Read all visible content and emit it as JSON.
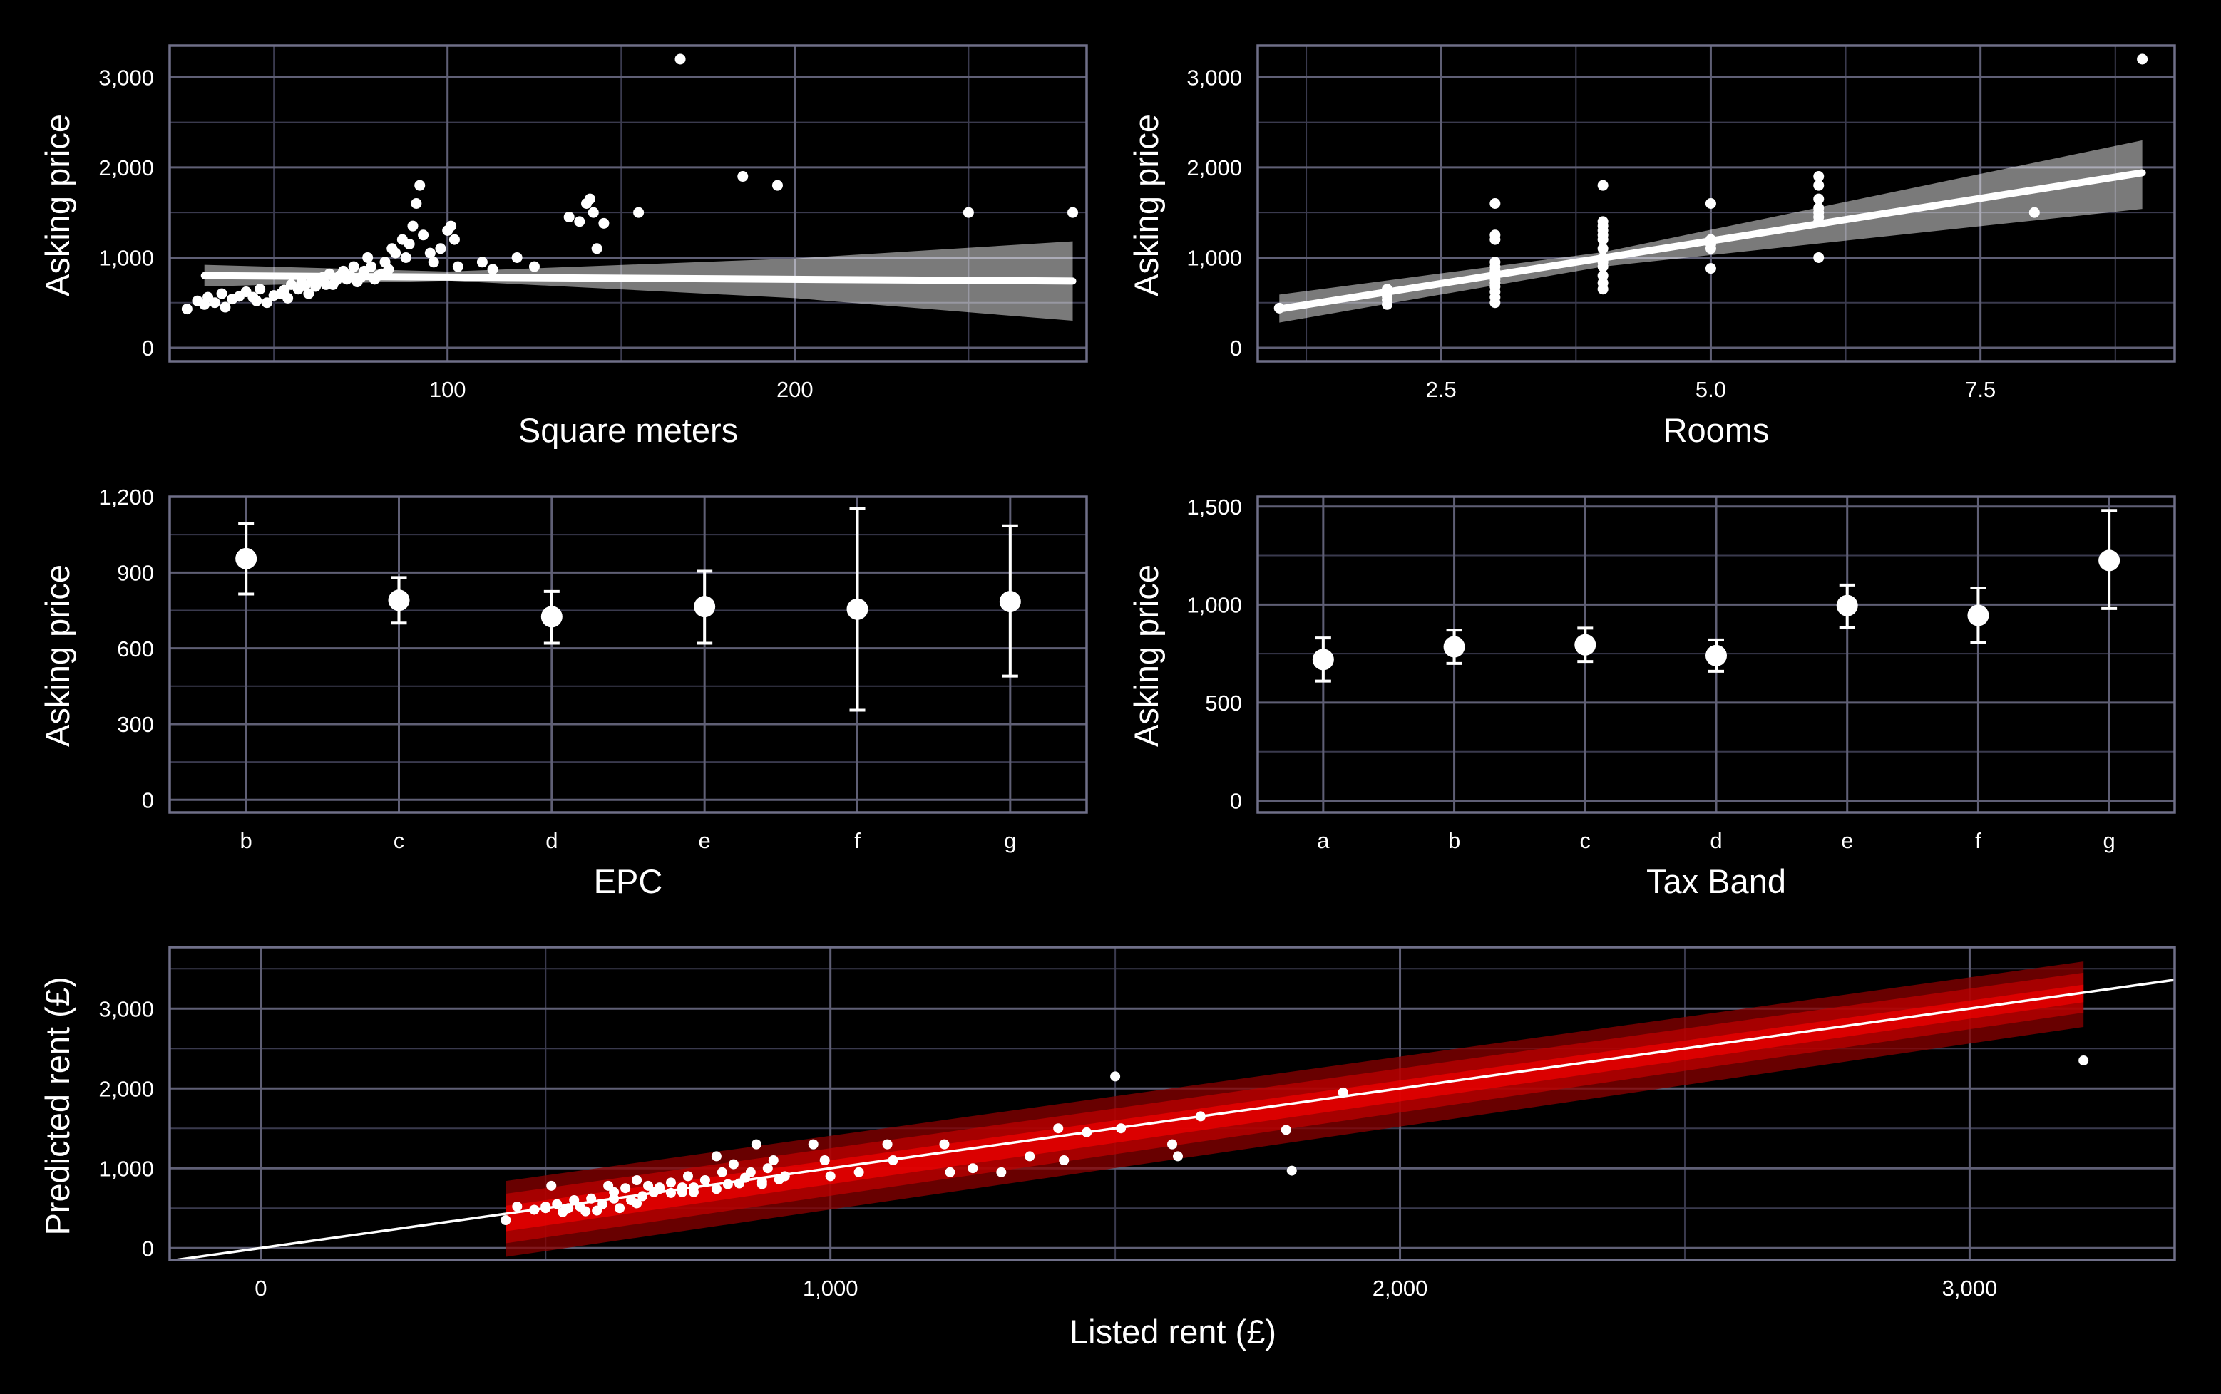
{
  "figure": {
    "background": "#000000",
    "grid_color": "#5f5f75",
    "marker_color": "#ffffff",
    "band_colors": [
      "#8b0000",
      "#c00000",
      "#ff0000"
    ]
  },
  "chart_data": [
    {
      "id": "sqm",
      "type": "scatter",
      "xlabel": "Square meters",
      "ylabel": "Asking price",
      "xlim": [
        20,
        284
      ],
      "ylim": [
        -150,
        3350
      ],
      "xticks": [
        100,
        200
      ],
      "yticks": [
        0,
        1000,
        2000,
        3000
      ],
      "xtick_labels": [
        "100",
        "200"
      ],
      "ytick_labels": [
        "0",
        "1,000",
        "2,000",
        "3,000"
      ],
      "minor_x": [
        50,
        150,
        250
      ],
      "minor_y": [
        500,
        1500,
        2500
      ],
      "points": [
        [
          25,
          430
        ],
        [
          28,
          520
        ],
        [
          30,
          480
        ],
        [
          31,
          560
        ],
        [
          33,
          500
        ],
        [
          35,
          600
        ],
        [
          38,
          540
        ],
        [
          40,
          570
        ],
        [
          42,
          620
        ],
        [
          44,
          560
        ],
        [
          46,
          650
        ],
        [
          48,
          500
        ],
        [
          50,
          580
        ],
        [
          52,
          600
        ],
        [
          54,
          550
        ],
        [
          55,
          700
        ],
        [
          57,
          650
        ],
        [
          58,
          720
        ],
        [
          60,
          600
        ],
        [
          62,
          680
        ],
        [
          63,
          750
        ],
        [
          64,
          780
        ],
        [
          65,
          700
        ],
        [
          66,
          820
        ],
        [
          68,
          750
        ],
        [
          70,
          850
        ],
        [
          71,
          760
        ],
        [
          72,
          800
        ],
        [
          73,
          900
        ],
        [
          75,
          780
        ],
        [
          76,
          850
        ],
        [
          77,
          1000
        ],
        [
          78,
          900
        ],
        [
          80,
          800
        ],
        [
          81,
          820
        ],
        [
          82,
          950
        ],
        [
          84,
          1100
        ],
        [
          85,
          1050
        ],
        [
          87,
          1200
        ],
        [
          88,
          1000
        ],
        [
          89,
          1150
        ],
        [
          90,
          1350
        ],
        [
          91,
          1600
        ],
        [
          92,
          1800
        ],
        [
          93,
          1250
        ],
        [
          95,
          1050
        ],
        [
          96,
          950
        ],
        [
          98,
          1100
        ],
        [
          100,
          1300
        ],
        [
          101,
          1350
        ],
        [
          102,
          1200
        ],
        [
          103,
          900
        ],
        [
          110,
          950
        ],
        [
          113,
          870
        ],
        [
          120,
          1000
        ],
        [
          125,
          900
        ],
        [
          135,
          1450
        ],
        [
          138,
          1400
        ],
        [
          140,
          1600
        ],
        [
          141,
          1650
        ],
        [
          142,
          1500
        ],
        [
          143,
          1100
        ],
        [
          145,
          1380
        ],
        [
          155,
          1500
        ],
        [
          167,
          3200
        ],
        [
          185,
          1900
        ],
        [
          195,
          1800
        ],
        [
          250,
          1500
        ],
        [
          280,
          1500
        ],
        [
          36,
          450
        ],
        [
          45,
          520
        ],
        [
          53,
          640
        ],
        [
          59,
          690
        ],
        [
          61,
          740
        ],
        [
          67,
          700
        ],
        [
          69,
          800
        ],
        [
          74,
          730
        ],
        [
          79,
          760
        ],
        [
          83,
          870
        ]
      ],
      "regression": {
        "x": [
          30,
          280
        ],
        "y": [
          800,
          740
        ]
      },
      "ci_band": {
        "x": [
          30,
          100,
          200,
          280
        ],
        "upper": [
          920,
          845,
          990,
          1180
        ],
        "lower": [
          680,
          745,
          550,
          300
        ]
      }
    },
    {
      "id": "rooms",
      "type": "scatter",
      "xlabel": "Rooms",
      "ylabel": "Asking price",
      "xlim": [
        0.8,
        9.3
      ],
      "ylim": [
        -150,
        3350
      ],
      "xticks": [
        2.5,
        5.0,
        7.5
      ],
      "yticks": [
        0,
        1000,
        2000,
        3000
      ],
      "xtick_labels": [
        "2.5",
        "5.0",
        "7.5"
      ],
      "ytick_labels": [
        "0",
        "1,000",
        "2,000",
        "3,000"
      ],
      "minor_x": [
        1.25,
        3.75,
        6.25,
        8.75
      ],
      "minor_y": [
        500,
        1500,
        2500
      ],
      "points": [
        [
          1,
          440
        ],
        [
          2,
          480
        ],
        [
          2,
          530
        ],
        [
          2,
          570
        ],
        [
          2,
          600
        ],
        [
          2,
          650
        ],
        [
          3,
          500
        ],
        [
          3,
          560
        ],
        [
          3,
          620
        ],
        [
          3,
          680
        ],
        [
          3,
          720
        ],
        [
          3,
          760
        ],
        [
          3,
          800
        ],
        [
          3,
          850
        ],
        [
          3,
          900
        ],
        [
          3,
          950
        ],
        [
          3,
          1200
        ],
        [
          3,
          1250
        ],
        [
          3,
          1600
        ],
        [
          4,
          650
        ],
        [
          4,
          720
        ],
        [
          4,
          800
        ],
        [
          4,
          900
        ],
        [
          4,
          950
        ],
        [
          4,
          1000
        ],
        [
          4,
          1100
        ],
        [
          4,
          1200
        ],
        [
          4,
          1250
        ],
        [
          4,
          1300
        ],
        [
          4,
          1350
        ],
        [
          4,
          1400
        ],
        [
          4,
          1800
        ],
        [
          5,
          880
        ],
        [
          5,
          1100
        ],
        [
          5,
          1150
        ],
        [
          5,
          1200
        ],
        [
          5,
          1600
        ],
        [
          6,
          1000
        ],
        [
          6,
          1400
        ],
        [
          6,
          1450
        ],
        [
          6,
          1500
        ],
        [
          6,
          1550
        ],
        [
          6,
          1650
        ],
        [
          6,
          1800
        ],
        [
          6,
          1900
        ],
        [
          8,
          1500
        ],
        [
          9,
          3200
        ]
      ],
      "regression": {
        "x": [
          1,
          9
        ],
        "y": [
          430,
          1940
        ]
      },
      "ci_band": {
        "x": [
          1,
          4,
          9
        ],
        "upper": [
          590,
          1060,
          2300
        ],
        "lower": [
          280,
          900,
          1540
        ]
      }
    },
    {
      "id": "epc",
      "type": "errorbar",
      "xlabel": "EPC",
      "ylabel": "Asking price",
      "categories": [
        "b",
        "c",
        "d",
        "e",
        "f",
        "g"
      ],
      "means": [
        955,
        790,
        725,
        765,
        755,
        785
      ],
      "lower": [
        815,
        700,
        620,
        620,
        355,
        490
      ],
      "upper": [
        1095,
        880,
        825,
        905,
        1155,
        1085
      ],
      "ylim": [
        -50,
        1200
      ],
      "yticks": [
        0,
        300,
        600,
        900,
        1200
      ],
      "ytick_labels": [
        "0",
        "300",
        "600",
        "900",
        "1,200"
      ],
      "minor_y": [
        150,
        450,
        750,
        1050
      ]
    },
    {
      "id": "tax",
      "type": "errorbar",
      "xlabel": "Tax Band",
      "ylabel": "Asking price",
      "categories": [
        "a",
        "b",
        "c",
        "d",
        "e",
        "f",
        "g"
      ],
      "means": [
        720,
        785,
        795,
        740,
        995,
        945,
        1225
      ],
      "lower": [
        610,
        700,
        710,
        660,
        885,
        805,
        980
      ],
      "upper": [
        830,
        870,
        880,
        820,
        1100,
        1085,
        1480
      ],
      "ylim": [
        -60,
        1550
      ],
      "yticks": [
        0,
        500,
        1000,
        1500
      ],
      "ytick_labels": [
        "0",
        "500",
        "1,000",
        "1,500"
      ],
      "minor_y": [
        250,
        750,
        1250
      ]
    },
    {
      "id": "pred",
      "type": "scatter",
      "xlabel": "Listed rent (£)",
      "ylabel": "Predicted rent (£)",
      "xlim": [
        -160,
        3360
      ],
      "ylim": [
        -150,
        3770
      ],
      "xticks": [
        0,
        1000,
        2000,
        3000
      ],
      "yticks": [
        0,
        1000,
        2000,
        3000
      ],
      "xtick_labels": [
        "0",
        "1,000",
        "2,000",
        "3,000"
      ],
      "ytick_labels": [
        "0",
        "1,000",
        "2,000",
        "3,000"
      ],
      "minor_x": [
        500,
        1500,
        2500
      ],
      "minor_y": [
        500,
        1500,
        2500,
        3500
      ],
      "identity_line": {
        "x": [
          -160,
          3360
        ],
        "y": [
          -160,
          3360
        ]
      },
      "bands": [
        {
          "x": [
            430,
            3200
          ],
          "lower": [
            -110,
            2770
          ],
          "upper": [
            840,
            3590
          ]
        },
        {
          "x": [
            430,
            3200
          ],
          "lower": [
            60,
            2950
          ],
          "upper": [
            680,
            3450
          ]
        },
        {
          "x": [
            430,
            3200
          ],
          "lower": [
            210,
            3080
          ],
          "upper": [
            530,
            3300
          ]
        }
      ],
      "points": [
        [
          430,
          350
        ],
        [
          450,
          520
        ],
        [
          480,
          480
        ],
        [
          500,
          500
        ],
        [
          510,
          780
        ],
        [
          520,
          550
        ],
        [
          540,
          500
        ],
        [
          550,
          600
        ],
        [
          560,
          520
        ],
        [
          580,
          620
        ],
        [
          590,
          470
        ],
        [
          600,
          550
        ],
        [
          610,
          780
        ],
        [
          620,
          700
        ],
        [
          640,
          750
        ],
        [
          650,
          600
        ],
        [
          660,
          850
        ],
        [
          680,
          780
        ],
        [
          690,
          700
        ],
        [
          700,
          760
        ],
        [
          720,
          820
        ],
        [
          740,
          760
        ],
        [
          750,
          900
        ],
        [
          760,
          700
        ],
        [
          780,
          850
        ],
        [
          800,
          1150
        ],
        [
          810,
          950
        ],
        [
          820,
          800
        ],
        [
          830,
          1050
        ],
        [
          850,
          880
        ],
        [
          860,
          950
        ],
        [
          870,
          1300
        ],
        [
          880,
          800
        ],
        [
          890,
          1000
        ],
        [
          900,
          1100
        ],
        [
          920,
          900
        ],
        [
          970,
          1300
        ],
        [
          990,
          1100
        ],
        [
          1000,
          900
        ],
        [
          1050,
          950
        ],
        [
          1100,
          1300
        ],
        [
          1110,
          1100
        ],
        [
          1200,
          1300
        ],
        [
          1210,
          950
        ],
        [
          1250,
          1000
        ],
        [
          1300,
          950
        ],
        [
          1350,
          1150
        ],
        [
          1400,
          1500
        ],
        [
          1410,
          1100
        ],
        [
          1450,
          1450
        ],
        [
          1500,
          2150
        ],
        [
          1510,
          1500
        ],
        [
          1600,
          1300
        ],
        [
          1610,
          1150
        ],
        [
          1650,
          1650
        ],
        [
          1800,
          1480
        ],
        [
          1810,
          970
        ],
        [
          1900,
          1950
        ],
        [
          3200,
          2350
        ],
        [
          530,
          450
        ],
        [
          570,
          460
        ],
        [
          630,
          500
        ],
        [
          660,
          560
        ],
        [
          700,
          740
        ],
        [
          720,
          690
        ],
        [
          760,
          760
        ],
        [
          800,
          740
        ],
        [
          840,
          810
        ],
        [
          880,
          830
        ],
        [
          910,
          860
        ],
        [
          500,
          520
        ],
        [
          620,
          620
        ],
        [
          670,
          650
        ],
        [
          740,
          700
        ]
      ]
    }
  ]
}
